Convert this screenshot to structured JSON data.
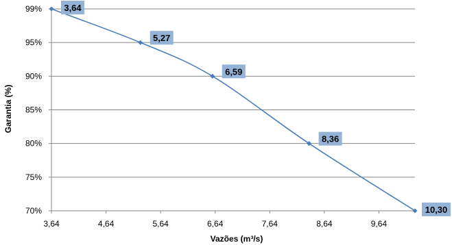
{
  "chart_data": {
    "type": "line",
    "title": "",
    "xlabel": "Vazões (m³/s)",
    "ylabel": "Garantia (%)",
    "xlim": [
      3.64,
      10.3
    ],
    "ylim": [
      70,
      100
    ],
    "x_ticks": [
      3.64,
      4.64,
      5.64,
      6.64,
      7.64,
      8.64,
      9.64
    ],
    "x_tick_labels": [
      "3,64",
      "4,64",
      "5,64",
      "6,64",
      "7,64",
      "8,64",
      "9,64"
    ],
    "y_ticks": [
      70,
      75,
      80,
      85,
      90,
      95,
      99
    ],
    "y_tick_labels": [
      "70%",
      "75%",
      "80%",
      "85%",
      "90%",
      "95%",
      "99%"
    ],
    "grid": "horizontal",
    "legend": "none",
    "series": [
      {
        "x": [
          3.64,
          5.27,
          6.59,
          8.36,
          10.3
        ],
        "y": [
          99,
          95,
          90,
          80,
          70
        ],
        "data_labels": [
          "3,64",
          "5,27",
          "6,59",
          "8,36",
          "10,30"
        ],
        "color": "#4a7ebb"
      }
    ],
    "label_background": "#95b3d7",
    "gridline_color": "#868686"
  }
}
